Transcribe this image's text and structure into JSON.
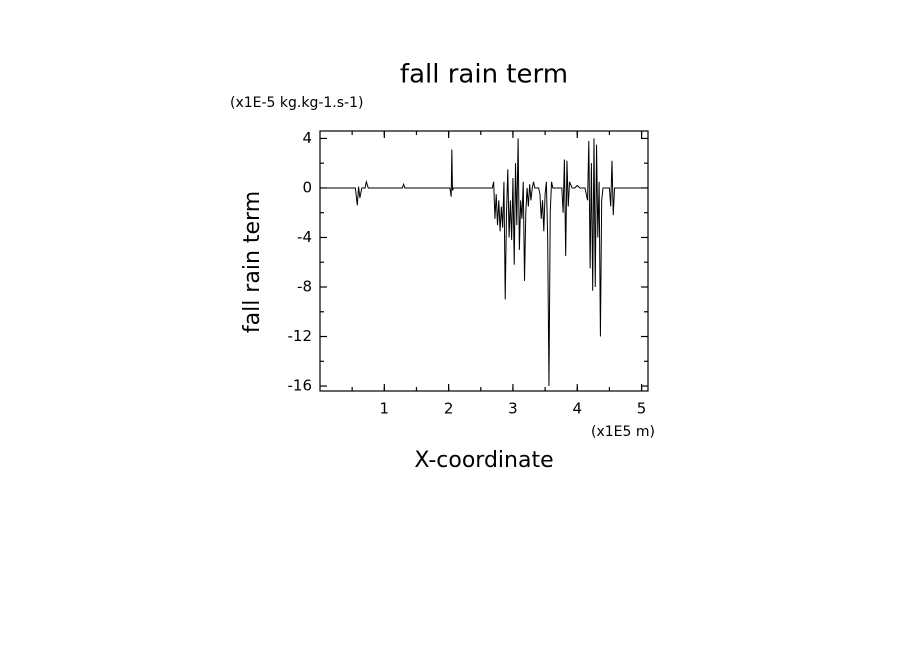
{
  "chart_data": {
    "type": "line",
    "title": "fall rain term",
    "y_units": "(x1E-5 kg.kg-1.s-1)",
    "ylabel": "fall rain term",
    "xlabel": "X-coordinate",
    "x_units": "(x1E5 m)",
    "color": "#000000",
    "xlim": [
      0,
      5.1
    ],
    "ylim": [
      -16.4,
      4.6
    ],
    "xticks": [
      1,
      2,
      3,
      4,
      5
    ],
    "yticks": [
      4,
      0,
      -4,
      -8,
      -12,
      -16
    ],
    "x": [
      0,
      0.55,
      0.58,
      0.6,
      0.62,
      0.65,
      0.7,
      0.72,
      0.75,
      0.78,
      1.28,
      1.3,
      1.32,
      2.02,
      2.04,
      2.05,
      2.06,
      2.08,
      2.68,
      2.7,
      2.72,
      2.74,
      2.76,
      2.78,
      2.8,
      2.82,
      2.84,
      2.86,
      2.88,
      2.9,
      2.92,
      2.94,
      2.96,
      2.98,
      3.0,
      3.02,
      3.04,
      3.06,
      3.08,
      3.1,
      3.12,
      3.14,
      3.16,
      3.18,
      3.2,
      3.22,
      3.24,
      3.26,
      3.28,
      3.3,
      3.32,
      3.34,
      3.36,
      3.38,
      3.4,
      3.42,
      3.44,
      3.46,
      3.48,
      3.5,
      3.52,
      3.54,
      3.56,
      3.58,
      3.6,
      3.62,
      3.64,
      3.66,
      3.7,
      3.76,
      3.78,
      3.8,
      3.82,
      3.84,
      3.86,
      3.88,
      3.92,
      3.96,
      4.0,
      4.04,
      4.08,
      4.12,
      4.16,
      4.18,
      4.2,
      4.22,
      4.24,
      4.26,
      4.28,
      4.3,
      4.32,
      4.34,
      4.36,
      4.38,
      4.4,
      4.42,
      4.46,
      4.5,
      4.52,
      4.54,
      4.56,
      4.58,
      4.62,
      5.1
    ],
    "values": [
      0,
      0,
      -1.4,
      0.1,
      -0.8,
      0,
      0,
      0.5,
      0,
      0,
      0,
      0.3,
      0,
      0,
      -0.7,
      3.1,
      -0.2,
      0,
      0,
      0.5,
      -2.5,
      -0.5,
      -3,
      -1,
      -3.5,
      -1.5,
      -3.2,
      0.5,
      -9,
      -2,
      1.5,
      -4,
      -1,
      -4.2,
      0.8,
      -6.2,
      2,
      -3,
      4,
      -5,
      -1,
      -2.5,
      0.5,
      -7.5,
      -2,
      0,
      -1.5,
      0.3,
      -1,
      0,
      0.5,
      0,
      0,
      0,
      0,
      -0.5,
      -2.5,
      -1,
      -3.5,
      -0.5,
      0.5,
      -4,
      -16,
      -2,
      0.5,
      0,
      0,
      0,
      0,
      0,
      -2,
      2.3,
      -5.5,
      2.2,
      -1.5,
      0.5,
      0,
      0,
      0.2,
      0,
      0,
      0,
      -1,
      3.8,
      -6.5,
      2,
      -8.3,
      4,
      -8,
      3.5,
      -4,
      0.5,
      -12,
      -1,
      0,
      0,
      0,
      0,
      -1.5,
      2.2,
      -2.2,
      0,
      0,
      0
    ]
  }
}
